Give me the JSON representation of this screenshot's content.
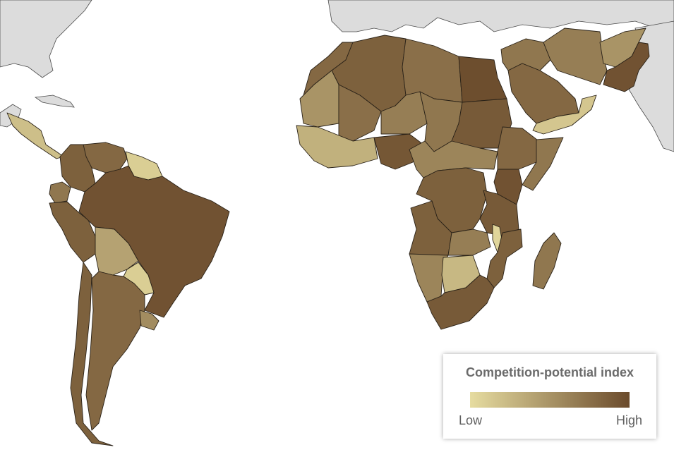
{
  "legend": {
    "title": "Competition-potential index",
    "low_label": "Low",
    "high_label": "High",
    "low_color": "#e6dca0",
    "high_color": "#6b4b2c"
  },
  "colors": {
    "ocean": "#ffffff",
    "no_data": "#dcdcdc",
    "border": "#2a2218"
  },
  "countries": [
    {
      "id": "brazil",
      "index": 0.95
    },
    {
      "id": "colombia",
      "index": 0.85
    },
    {
      "id": "venezuela",
      "index": 0.8
    },
    {
      "id": "guyana-suriname",
      "index": 0.1
    },
    {
      "id": "peru",
      "index": 0.85
    },
    {
      "id": "ecuador",
      "index": 0.7
    },
    {
      "id": "bolivia",
      "index": 0.4
    },
    {
      "id": "paraguay",
      "index": 0.1
    },
    {
      "id": "chile",
      "index": 0.85
    },
    {
      "id": "argentina",
      "index": 0.8
    },
    {
      "id": "uruguay",
      "index": 0.55
    },
    {
      "id": "central-america",
      "index": 0.2
    },
    {
      "id": "morocco",
      "index": 0.8
    },
    {
      "id": "algeria",
      "index": 0.85
    },
    {
      "id": "libya",
      "index": 0.75
    },
    {
      "id": "egypt",
      "index": 0.98
    },
    {
      "id": "mauritania",
      "index": 0.5
    },
    {
      "id": "mali",
      "index": 0.75
    },
    {
      "id": "niger",
      "index": 0.65
    },
    {
      "id": "chad",
      "index": 0.7
    },
    {
      "id": "sudan",
      "index": 0.9
    },
    {
      "id": "west-africa",
      "index": 0.3
    },
    {
      "id": "nigeria",
      "index": 0.92
    },
    {
      "id": "ethiopia",
      "index": 0.8
    },
    {
      "id": "somalia",
      "index": 0.7
    },
    {
      "id": "kenya",
      "index": 0.95
    },
    {
      "id": "drc",
      "index": 0.85
    },
    {
      "id": "central-africa",
      "index": 0.6
    },
    {
      "id": "tanzania",
      "index": 0.9
    },
    {
      "id": "angola",
      "index": 0.85
    },
    {
      "id": "zambia",
      "index": 0.65
    },
    {
      "id": "mozambique",
      "index": 0.85
    },
    {
      "id": "malawi",
      "index": 0.05
    },
    {
      "id": "namibia",
      "index": 0.6
    },
    {
      "id": "botswana",
      "index": 0.25
    },
    {
      "id": "south-africa",
      "index": 0.9
    },
    {
      "id": "madagascar",
      "index": 0.7
    },
    {
      "id": "saudi-arabia",
      "index": 0.8
    },
    {
      "id": "yemen-oman",
      "index": 0.15
    },
    {
      "id": "iran",
      "index": 0.65
    },
    {
      "id": "iraq-syria",
      "index": 0.7
    },
    {
      "id": "afghanistan",
      "index": 0.5
    },
    {
      "id": "pakistan",
      "index": 0.95
    }
  ]
}
